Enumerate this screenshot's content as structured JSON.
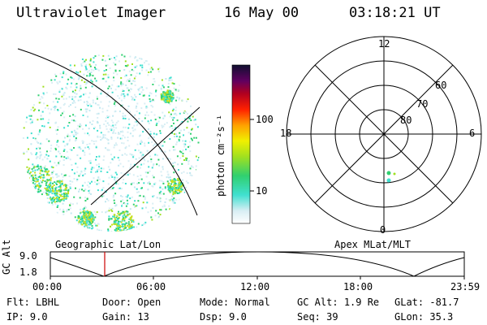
{
  "header": {
    "instrument": "Ultraviolet Imager",
    "date": "16 May 00",
    "time": "03:18:21 UT"
  },
  "colorbar": {
    "unit_label": "photon cm⁻²s⁻¹",
    "ticks": [
      {
        "label": "100",
        "value": 100
      },
      {
        "label": "10",
        "value": 10
      }
    ],
    "scale": "log"
  },
  "polar_plot": {
    "mlt_labels": {
      "top": "12",
      "left": "18",
      "right": "6",
      "bottom": "0"
    },
    "lat_labels": [
      "60",
      "70",
      "80"
    ]
  },
  "panel_labels": {
    "left": "Geographic Lat/Lon",
    "right": "Apex MLat/MLT"
  },
  "altitude_plot": {
    "axis_label": "GC Alt",
    "y_ticks": [
      "9.0",
      "1.8"
    ],
    "x_ticks": [
      "00:00",
      "06:00",
      "12:00",
      "18:00",
      "23:59"
    ],
    "marker_time": "03:18",
    "marker_color": "#cc0000"
  },
  "status": {
    "row1": [
      {
        "key": "Flt:",
        "value": "LBHL"
      },
      {
        "key": "Door:",
        "value": "Open"
      },
      {
        "key": "Mode:",
        "value": "Normal"
      },
      {
        "key": "GC Alt:",
        "value": "1.9 Re"
      },
      {
        "key": "GLat:",
        "value": "-81.7"
      }
    ],
    "row2": [
      {
        "key": "IP:",
        "value": "9.0"
      },
      {
        "key": "Gain:",
        "value": "13"
      },
      {
        "key": "Dsp:",
        "value": "9.0"
      },
      {
        "key": "Seq:",
        "value": "39"
      },
      {
        "key": "GLon:",
        "value": "35.3"
      }
    ]
  }
}
